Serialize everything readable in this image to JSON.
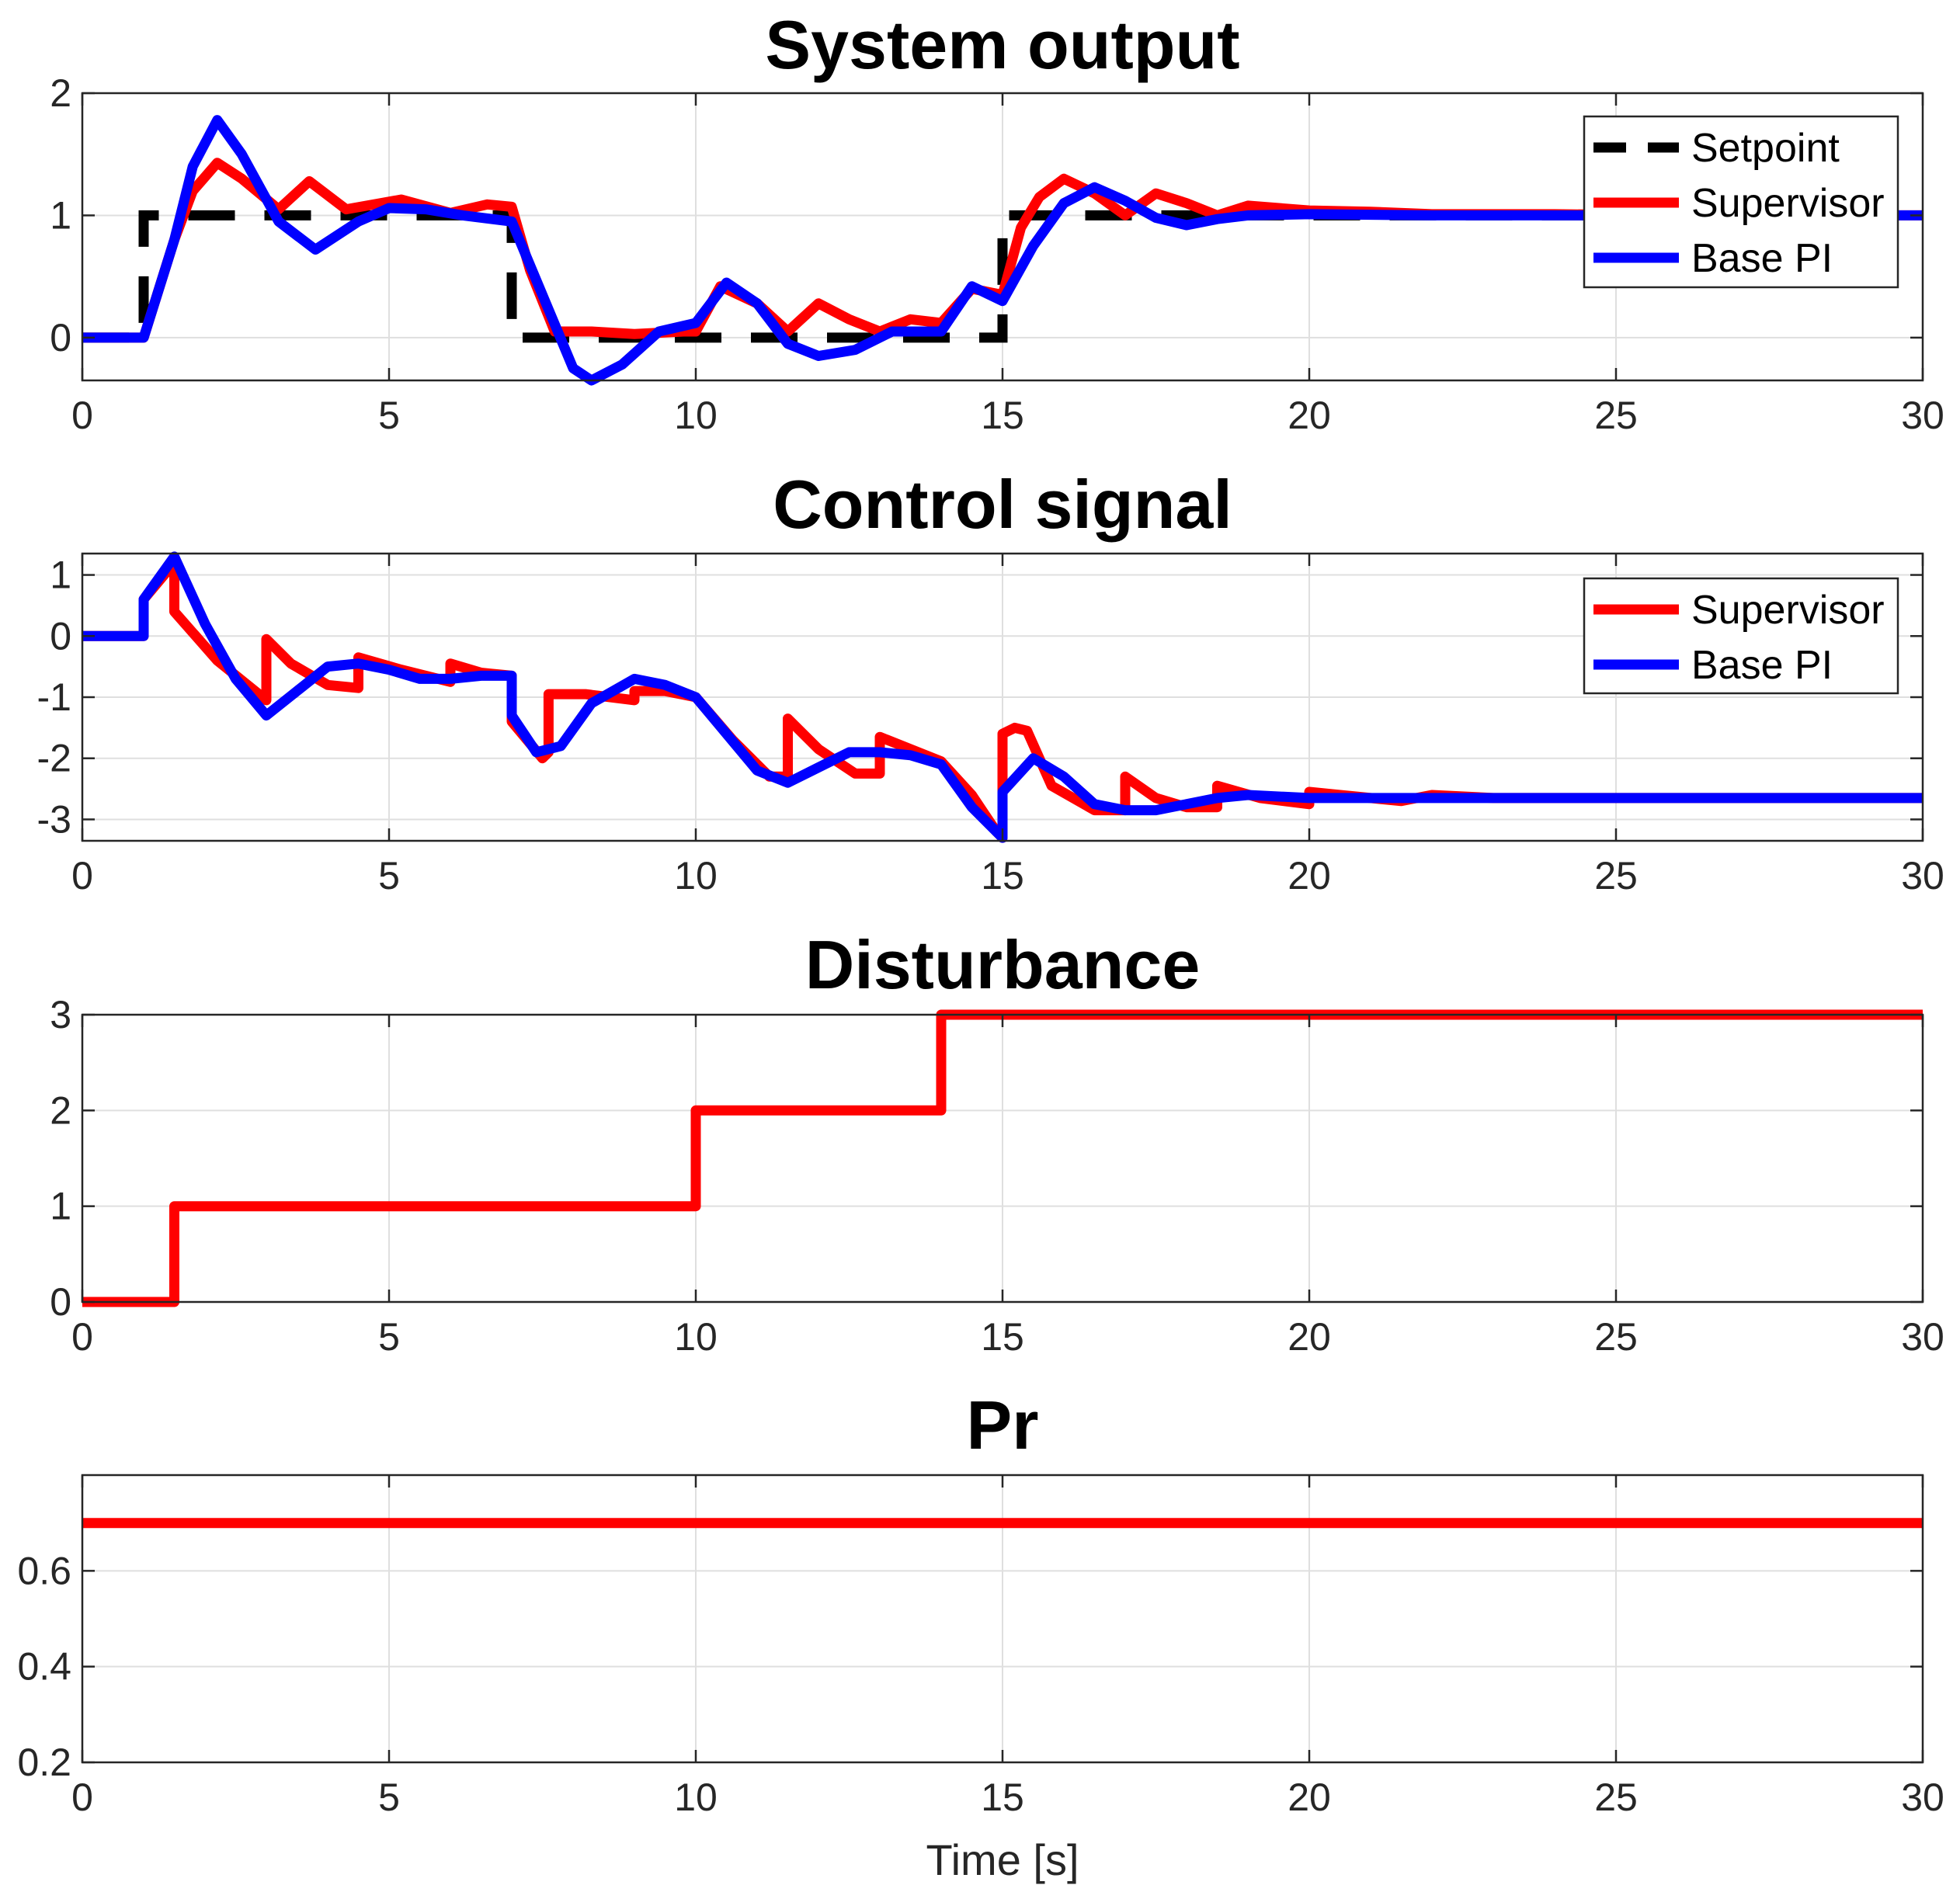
{
  "chart_data": [
    {
      "type": "line",
      "title": "System output",
      "xlim": [
        0,
        30
      ],
      "ylim": [
        -0.35,
        2
      ],
      "xticks": [
        0,
        5,
        10,
        15,
        20,
        25,
        30
      ],
      "yticks": [
        0,
        1,
        2
      ],
      "xlabel": "",
      "ylabel": "",
      "legend": "top-right",
      "grid": true,
      "series": [
        {
          "name": "Setpoint",
          "color": "#000000",
          "style": "dashed",
          "x": [
            0,
            1,
            1,
            7,
            7,
            15,
            15,
            30
          ],
          "y": [
            0,
            0,
            1,
            1,
            0,
            0,
            1,
            1
          ]
        },
        {
          "name": "Supervisor",
          "color": "#ff0000",
          "style": "solid",
          "x": [
            0,
            1,
            1.5,
            1.8,
            2.2,
            2.6,
            3.2,
            3.7,
            4.3,
            5.2,
            6.0,
            6.6,
            7.0,
            7.3,
            7.7,
            8.3,
            9.0,
            9.8,
            10.0,
            10.4,
            11.0,
            11.5,
            12.0,
            12.5,
            13.0,
            13.5,
            14.0,
            14.5,
            15.0,
            15.3,
            15.6,
            16.0,
            16.5,
            17.0,
            17.5,
            18.0,
            18.5,
            19.0,
            20.0,
            21.0,
            22.0,
            24.0,
            26.0,
            30.0
          ],
          "y": [
            0,
            0,
            0.8,
            1.2,
            1.43,
            1.3,
            1.05,
            1.28,
            1.05,
            1.13,
            1.02,
            1.09,
            1.07,
            0.55,
            0.05,
            0.05,
            0.03,
            0.05,
            0.05,
            0.42,
            0.28,
            0.05,
            0.28,
            0.15,
            0.05,
            0.15,
            0.12,
            0.4,
            0.35,
            0.9,
            1.15,
            1.3,
            1.18,
            1.0,
            1.18,
            1.1,
            1.0,
            1.08,
            1.04,
            1.03,
            1.01,
            1.01,
            1.0,
            1.0
          ]
        },
        {
          "name": "Base PI",
          "color": "#0000ff",
          "style": "solid",
          "x": [
            0,
            1,
            1.5,
            1.8,
            2.2,
            2.6,
            3.2,
            3.8,
            4.5,
            5.0,
            5.6,
            6.2,
            7.0,
            7.5,
            8.0,
            8.3,
            8.8,
            9.4,
            10.0,
            10.5,
            11.0,
            11.5,
            12.0,
            12.6,
            13.2,
            13.8,
            14.0,
            14.5,
            15.0,
            15.5,
            16.0,
            16.5,
            17.0,
            17.5,
            18.0,
            18.5,
            19.0,
            20.0,
            22.0,
            24.0,
            26.0,
            30.0
          ],
          "y": [
            0,
            0,
            0.8,
            1.4,
            1.78,
            1.5,
            0.95,
            0.72,
            0.95,
            1.06,
            1.05,
            1.0,
            0.95,
            0.35,
            -0.25,
            -0.35,
            -0.22,
            0.05,
            0.12,
            0.45,
            0.28,
            -0.05,
            -0.15,
            -0.1,
            0.05,
            0.05,
            0.05,
            0.42,
            0.3,
            0.75,
            1.1,
            1.23,
            1.12,
            0.98,
            0.92,
            0.97,
            1.0,
            1.01,
            1.0,
            1.0,
            1.0,
            1.0
          ]
        }
      ]
    },
    {
      "type": "line",
      "title": "Control signal",
      "xlim": [
        0,
        30
      ],
      "ylim": [
        -3.35,
        1.35
      ],
      "xticks": [
        0,
        5,
        10,
        15,
        20,
        25,
        30
      ],
      "yticks": [
        -3,
        -2,
        -1,
        0,
        1
      ],
      "xlabel": "",
      "ylabel": "",
      "legend": "top-right",
      "grid": true,
      "series": [
        {
          "name": "Supervisor",
          "color": "#ff0000",
          "style": "solid",
          "x": [
            0,
            1,
            1,
            1.5,
            1.5,
            2.2,
            3.0,
            3.0,
            3.4,
            4.0,
            4.5,
            4.5,
            5.2,
            6.0,
            6.0,
            6.5,
            7.0,
            7.0,
            7.5,
            7.6,
            7.6,
            8.2,
            9.0,
            9.0,
            9.5,
            10.0,
            10.6,
            11.2,
            11.5,
            11.5,
            12.0,
            12.6,
            13.0,
            13.0,
            13.5,
            14.0,
            14.5,
            14.9,
            15.0,
            15.0,
            15.2,
            15.4,
            15.8,
            16.5,
            17.0,
            17.0,
            17.5,
            18.0,
            18.5,
            18.5,
            19.2,
            20.0,
            20.0,
            21.0,
            21.5,
            22.0,
            23.0,
            24.0,
            25.0,
            30.0
          ],
          "y": [
            0,
            0,
            0.6,
            1.2,
            0.4,
            -0.4,
            -1.05,
            -0.05,
            -0.45,
            -0.8,
            -0.85,
            -0.35,
            -0.55,
            -0.75,
            -0.45,
            -0.6,
            -0.65,
            -1.4,
            -2.0,
            -1.9,
            -0.95,
            -0.95,
            -1.05,
            -0.9,
            -0.9,
            -1.0,
            -1.7,
            -2.3,
            -2.3,
            -1.35,
            -1.85,
            -2.25,
            -2.25,
            -1.65,
            -1.85,
            -2.05,
            -2.6,
            -3.2,
            -3.3,
            -1.6,
            -1.5,
            -1.55,
            -2.45,
            -2.85,
            -2.85,
            -2.3,
            -2.65,
            -2.8,
            -2.8,
            -2.45,
            -2.65,
            -2.75,
            -2.55,
            -2.65,
            -2.7,
            -2.6,
            -2.65,
            -2.65,
            -2.65,
            -2.65
          ]
        },
        {
          "name": "Base PI",
          "color": "#0000ff",
          "style": "solid",
          "x": [
            0,
            1,
            1,
            1.5,
            2.0,
            2.5,
            3.0,
            3.5,
            4.0,
            4.5,
            5.0,
            5.5,
            6.0,
            6.5,
            7.0,
            7.0,
            7.4,
            7.8,
            8.3,
            9.0,
            9.5,
            10.0,
            10.5,
            11.0,
            11.5,
            12.0,
            12.5,
            13.0,
            13.5,
            14.0,
            14.5,
            15.0,
            15.0,
            15.5,
            16.0,
            16.5,
            17.0,
            17.5,
            18.0,
            18.5,
            19.0,
            20.0,
            22.0,
            24.0,
            30.0
          ],
          "y": [
            0,
            0,
            0.6,
            1.3,
            0.2,
            -0.7,
            -1.3,
            -0.9,
            -0.5,
            -0.45,
            -0.55,
            -0.7,
            -0.7,
            -0.65,
            -0.65,
            -1.3,
            -1.9,
            -1.8,
            -1.1,
            -0.7,
            -0.8,
            -1.0,
            -1.6,
            -2.2,
            -2.4,
            -2.15,
            -1.9,
            -1.9,
            -1.95,
            -2.1,
            -2.8,
            -3.3,
            -2.55,
            -2.0,
            -2.3,
            -2.75,
            -2.85,
            -2.85,
            -2.75,
            -2.65,
            -2.6,
            -2.65,
            -2.65,
            -2.65,
            -2.65
          ]
        }
      ]
    },
    {
      "type": "line",
      "title": "Disturbance",
      "xlim": [
        0,
        30
      ],
      "ylim": [
        0,
        3
      ],
      "xticks": [
        0,
        5,
        10,
        15,
        20,
        25,
        30
      ],
      "yticks": [
        0,
        1,
        2,
        3
      ],
      "xlabel": "",
      "ylabel": "",
      "grid": true,
      "series": [
        {
          "name": "Disturbance",
          "color": "#ff0000",
          "style": "solid",
          "x": [
            0,
            1.5,
            1.5,
            10,
            10,
            14,
            14,
            30
          ],
          "y": [
            0,
            0,
            1,
            1,
            2,
            2,
            3,
            3
          ]
        }
      ]
    },
    {
      "type": "line",
      "title": "Pr",
      "xlim": [
        0,
        30
      ],
      "ylim": [
        0.2,
        0.8
      ],
      "xticks": [
        0,
        5,
        10,
        15,
        20,
        25,
        30
      ],
      "yticks": [
        0.2,
        0.4,
        0.6
      ],
      "xlabel": "Time [s]",
      "ylabel": "",
      "grid": true,
      "series": [
        {
          "name": "Pr",
          "color": "#ff0000",
          "style": "solid",
          "x": [
            0,
            30
          ],
          "y": [
            0.7,
            0.7
          ]
        }
      ]
    }
  ]
}
